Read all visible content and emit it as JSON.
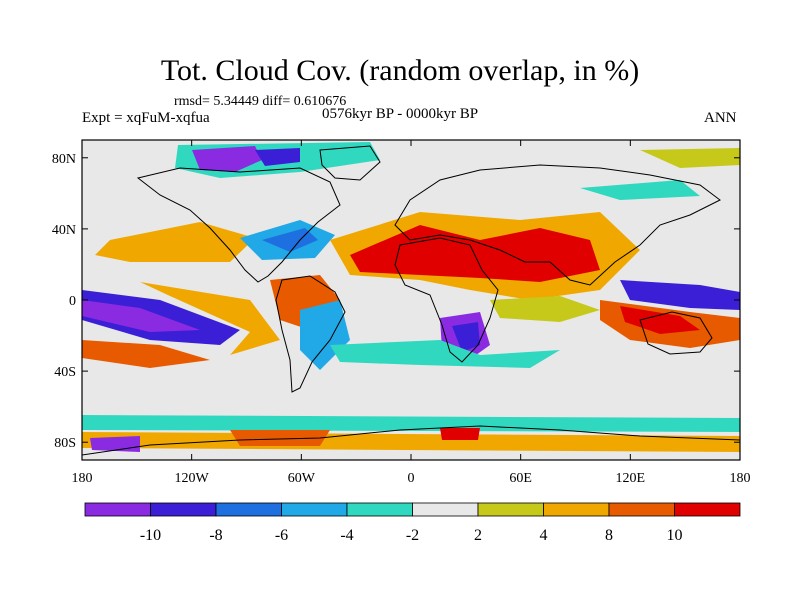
{
  "header": {
    "title": "Tot. Cloud Cov. (random overlap, in %)",
    "stats": "rmsd= 5.34449 diff= 0.610676",
    "experiment": "Expt = xqFuM-xqfua",
    "period": "0576kyr BP - 0000kyr BP",
    "season": "ANN"
  },
  "axes": {
    "lat_ticks": [
      {
        "label": "80N",
        "value": 80
      },
      {
        "label": "40N",
        "value": 40
      },
      {
        "label": "0",
        "value": 0
      },
      {
        "label": "40S",
        "value": -40
      },
      {
        "label": "80S",
        "value": -80
      }
    ],
    "lon_ticks": [
      {
        "label": "180",
        "value": -180
      },
      {
        "label": "120W",
        "value": -120
      },
      {
        "label": "60W",
        "value": -60
      },
      {
        "label": "0",
        "value": 0
      },
      {
        "label": "60E",
        "value": 60
      },
      {
        "label": "120E",
        "value": 120
      },
      {
        "label": "180",
        "value": 180
      }
    ]
  },
  "colorbar": {
    "labels": [
      "-10",
      "-8",
      "-6",
      "-4",
      "-2",
      "2",
      "4",
      "8",
      "10"
    ],
    "colors": [
      "#8a2be2",
      "#3b1fd6",
      "#1e6fe0",
      "#21a8e6",
      "#30d8c0",
      "#e8e8e8",
      "#c6c81a",
      "#f0a800",
      "#e85a00",
      "#e00000"
    ]
  },
  "colors": {
    "land_outline": "#000000",
    "background_field": "#e8e8e8"
  }
}
